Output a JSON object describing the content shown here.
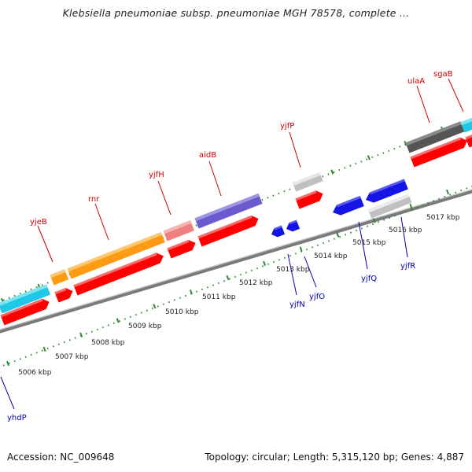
{
  "title": "Klebsiella pneumoniae subsp. pneumoniae MGH 78578, complete ...",
  "footer": {
    "accession": "Accession: NC_009648",
    "summary": "Topology: circular; Length: 5,315,120 bp; Genes: 4,887"
  },
  "colors": {
    "forward_gene": "#ff0000",
    "reverse_gene": "#1414e6",
    "forward_label": "#cc0000",
    "reverse_label": "#0000aa",
    "axis": "#888888",
    "tick": "#2e8b2e",
    "kbp_label": "#222222"
  },
  "forward_labels": [
    {
      "id": "yjeB",
      "text": "yjeB"
    },
    {
      "id": "rnr",
      "text": "rnr"
    },
    {
      "id": "yjfH",
      "text": "yjfH"
    },
    {
      "id": "aidB",
      "text": "aidB"
    },
    {
      "id": "yjfP",
      "text": "yjfP"
    },
    {
      "id": "ulaA",
      "text": "ulaA"
    },
    {
      "id": "sgaB",
      "text": "sgaB"
    }
  ],
  "reverse_labels": [
    {
      "id": "yhdP",
      "text": "yhdP"
    },
    {
      "id": "yjfN",
      "text": "yjfN"
    },
    {
      "id": "yjfO",
      "text": "yjfO"
    },
    {
      "id": "yjfQ",
      "text": "yjfQ"
    },
    {
      "id": "yjfR",
      "text": "yjfR"
    }
  ],
  "kbp_labels": [
    {
      "id": "k5006",
      "text": "5006 kbp"
    },
    {
      "id": "k5007",
      "text": "5007 kbp"
    },
    {
      "id": "k5008",
      "text": "5008 kbp"
    },
    {
      "id": "k5009",
      "text": "5009 kbp"
    },
    {
      "id": "k5010",
      "text": "5010 kbp"
    },
    {
      "id": "k5011",
      "text": "5011 kbp"
    },
    {
      "id": "k5012",
      "text": "5012 kbp"
    },
    {
      "id": "k5013",
      "text": "5013 kbp"
    },
    {
      "id": "k5014",
      "text": "5014 kbp"
    },
    {
      "id": "k5015",
      "text": "5015 kbp"
    },
    {
      "id": "k5016",
      "text": "5016 kbp"
    },
    {
      "id": "k5017",
      "text": "5017 kbp"
    }
  ]
}
